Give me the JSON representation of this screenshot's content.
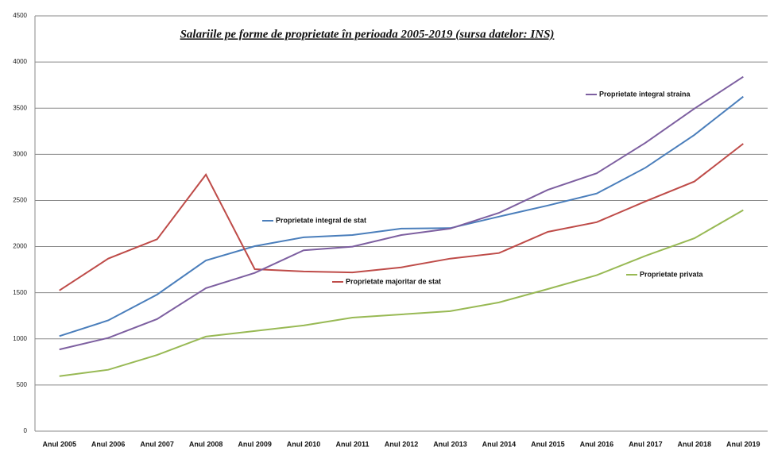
{
  "chart_data": {
    "type": "line",
    "title": "Salariile pe forme de proprietate în perioada 2005-2019 (sursa datelor: INS)",
    "categories": [
      "Anul 2005",
      "Anul 2006",
      "Anul 2007",
      "Anul 2008",
      "Anul 2009",
      "Anul 2010",
      "Anul 2011",
      "Anul 2012",
      "Anul 2013",
      "Anul 2014",
      "Anul 2015",
      "Anul 2016",
      "Anul 2017",
      "Anul 2018",
      "Anul 2019"
    ],
    "series": [
      {
        "name": "Proprietate integral de stat",
        "color": "#4a7ebb",
        "values": [
          1030,
          1200,
          1480,
          1850,
          2005,
          2100,
          2125,
          2195,
          2200,
          2325,
          2445,
          2575,
          2855,
          3210,
          3625
        ]
      },
      {
        "name": "Proprietate majoritar de stat",
        "color": "#be4b48",
        "values": [
          1525,
          1870,
          2080,
          2780,
          1755,
          1730,
          1720,
          1775,
          1870,
          1930,
          2160,
          2265,
          2490,
          2705,
          3115
        ]
      },
      {
        "name": "Proprietate integral straina",
        "color": "#7d5fa0",
        "values": [
          885,
          1010,
          1215,
          1550,
          1715,
          1960,
          2000,
          2125,
          2195,
          2365,
          2615,
          2795,
          3125,
          3495,
          3840
        ]
      },
      {
        "name": "Proprietate privata",
        "color": "#98b954",
        "values": [
          595,
          665,
          825,
          1025,
          1085,
          1145,
          1230,
          1265,
          1300,
          1395,
          1540,
          1690,
          1900,
          2090,
          2395
        ]
      }
    ],
    "ylim": [
      0,
      4500
    ],
    "yticks": [
      0,
      500,
      1000,
      1500,
      2000,
      2500,
      3000,
      3500,
      4000,
      4500
    ],
    "grid": true
  }
}
